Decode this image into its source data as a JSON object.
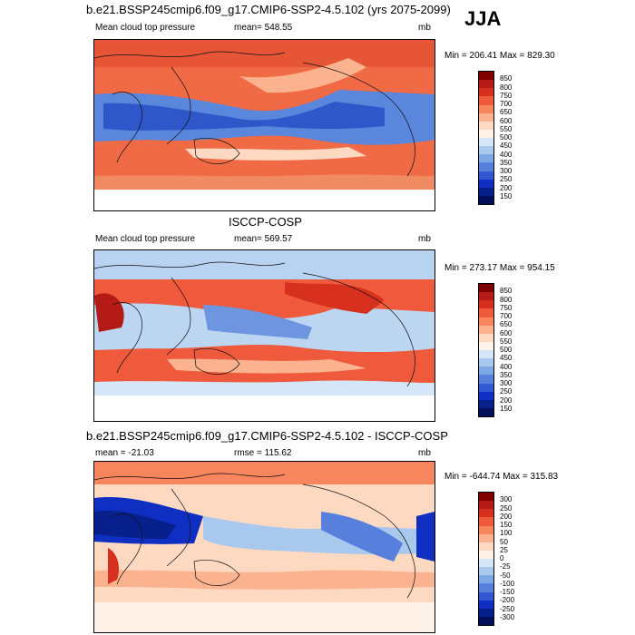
{
  "season": "JJA",
  "panels": [
    {
      "title": "b.e21.BSSP245cmip6.f09_g17.CMIP6-SSP2-4.5.102 (yrs 2075-2099)",
      "left_label": "Mean cloud top pressure",
      "center_label": "mean= 548.55",
      "units": "mb",
      "minmax": "Min = 206.41 Max = 829.30",
      "colorbar_labels": [
        "850",
        "800",
        "750",
        "700",
        "650",
        "600",
        "550",
        "500",
        "450",
        "400",
        "350",
        "300",
        "250",
        "200",
        "150"
      ],
      "colorbar_colors": [
        "#7f0000",
        "#b41b16",
        "#d7301f",
        "#ee5a3b",
        "#f7865f",
        "#fbb38f",
        "#fdd9c2",
        "#fff2e8",
        "#d4e6f8",
        "#a8c8ee",
        "#7ea7e6",
        "#5780dc",
        "#3158d1",
        "#0f2fc2",
        "#08208c",
        "#040f5a"
      ]
    },
    {
      "title": "ISCCP-COSP",
      "left_label": "Mean cloud top pressure",
      "center_label": "mean= 569.57",
      "units": "mb",
      "minmax": "Min = 273.17 Max = 954.15",
      "colorbar_labels": [
        "850",
        "800",
        "750",
        "700",
        "650",
        "600",
        "550",
        "500",
        "450",
        "400",
        "350",
        "300",
        "250",
        "200",
        "150"
      ],
      "colorbar_colors": [
        "#7f0000",
        "#b41b16",
        "#d7301f",
        "#ee5a3b",
        "#f7865f",
        "#fbb38f",
        "#fdd9c2",
        "#fff2e8",
        "#d4e6f8",
        "#a8c8ee",
        "#7ea7e6",
        "#5780dc",
        "#3158d1",
        "#0f2fc2",
        "#08208c",
        "#040f5a"
      ]
    },
    {
      "title": "b.e21.BSSP245cmip6.f09_g17.CMIP6-SSP2-4.5.102 - ISCCP-COSP",
      "left_label": "mean = -21.03",
      "center_label": "rmse = 115.62",
      "units": "mb",
      "minmax": "Min = -644.74 Max = 315.83",
      "colorbar_labels": [
        "300",
        "250",
        "200",
        "150",
        "100",
        "50",
        "25",
        "0",
        "-25",
        "-50",
        "-100",
        "-150",
        "-200",
        "-250",
        "-300"
      ],
      "colorbar_colors": [
        "#7f0000",
        "#b41b16",
        "#d7301f",
        "#ee5a3b",
        "#f7865f",
        "#fbb38f",
        "#fdd9c2",
        "#fff2e8",
        "#d4e6f8",
        "#a8c8ee",
        "#7ea7e6",
        "#5780dc",
        "#3158d1",
        "#0f2fc2",
        "#08208c",
        "#040f5a"
      ]
    }
  ]
}
